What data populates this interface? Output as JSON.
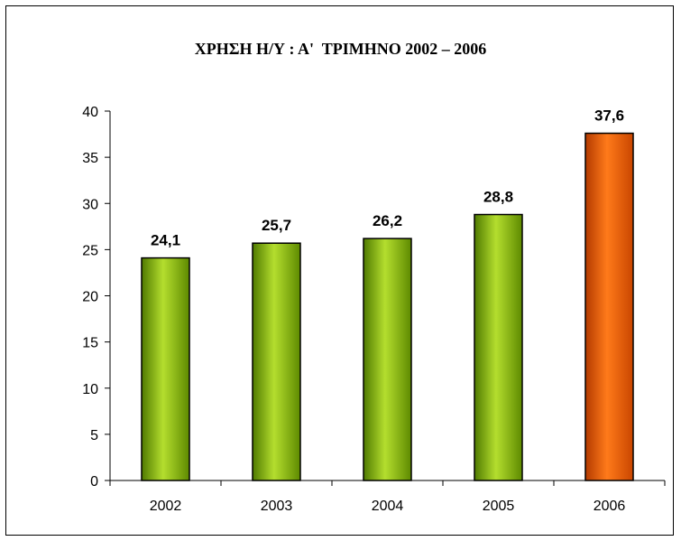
{
  "chart_data": {
    "type": "bar",
    "title": "ΧΡΗΣΗ Η/Υ : Α'  ΤΡΙΜΗΝΟ 2002 – 2006",
    "categories": [
      "2002",
      "2003",
      "2004",
      "2005",
      "2006"
    ],
    "values": [
      24.1,
      25.7,
      26.2,
      28.8,
      37.6
    ],
    "data_labels": [
      "24,1",
      "25,7",
      "26,2",
      "28,8",
      "37,6"
    ],
    "y_ticks": [
      "0",
      "5",
      "10",
      "15",
      "20",
      "25",
      "30",
      "35",
      "40"
    ],
    "ylim": [
      0,
      40
    ],
    "grid": false,
    "legend": false,
    "bar_colors": [
      "#9ACD32",
      "#9ACD32",
      "#9ACD32",
      "#9ACD32",
      "#FF6A00"
    ]
  }
}
